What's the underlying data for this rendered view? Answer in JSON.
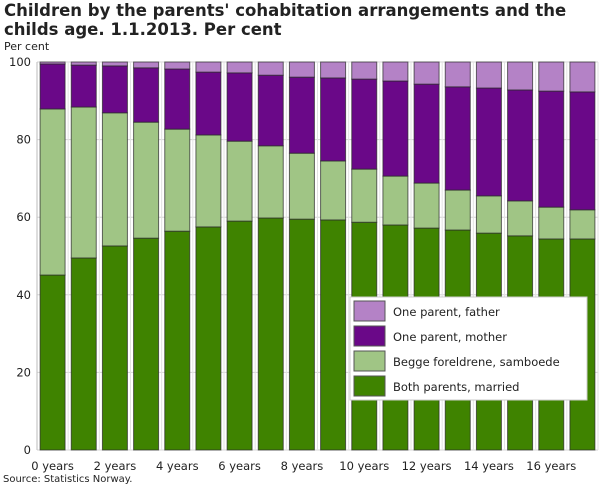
{
  "title": "Children by the parents' cohabitation arrangements and the childs age. 1.1.2013. Per cent",
  "ylabel": "Per cent",
  "source": "Source: Statistics Norway.",
  "chart_data": {
    "type": "bar",
    "stacked": true,
    "title": "Children by the parents' cohabitation arrangements and the childs age. 1.1.2013. Per cent",
    "ylabel": "Per cent",
    "xlabel": "",
    "ylim": [
      0,
      100
    ],
    "yticks": [
      0,
      20,
      40,
      60,
      80,
      100
    ],
    "grid": true,
    "legend_position": "bottom-right",
    "categories": [
      "0 years",
      "1 years",
      "2 years",
      "3 years",
      "4 years",
      "5 years",
      "6 years",
      "7 years",
      "8 years",
      "9 years",
      "10 years",
      "11 years",
      "12 years",
      "13 years",
      "14 years",
      "15 years",
      "16 years",
      "17 years"
    ],
    "xtick_labels": [
      "0 years",
      "2 years",
      "4 years",
      "6 years",
      "8 years",
      "10 years",
      "12 years",
      "14 years",
      "16 years"
    ],
    "series": [
      {
        "name": "Both parents, married",
        "color": "#3f8300",
        "values": [
          45.1,
          49.5,
          52.6,
          54.6,
          56.4,
          57.5,
          59.0,
          59.8,
          59.5,
          59.3,
          58.7,
          58.0,
          57.2,
          56.7,
          55.9,
          55.2,
          54.4,
          54.4
        ]
      },
      {
        "name": "Begge foreldrene, samboede",
        "color": "#a0c585",
        "values": [
          42.8,
          38.9,
          34.3,
          29.9,
          26.3,
          23.7,
          20.6,
          18.6,
          17.0,
          15.2,
          13.7,
          12.6,
          11.6,
          10.3,
          9.6,
          9.0,
          8.2,
          7.5
        ]
      },
      {
        "name": "One parent, mother",
        "color": "#6a0888",
        "values": [
          11.6,
          10.8,
          12.1,
          14.0,
          15.5,
          16.2,
          17.6,
          18.2,
          19.6,
          21.4,
          23.2,
          24.5,
          25.5,
          26.6,
          27.8,
          28.6,
          29.9,
          30.4
        ]
      },
      {
        "name": "One parent, father",
        "color": "#b482c6",
        "values": [
          0.5,
          0.8,
          1.0,
          1.5,
          1.8,
          2.6,
          2.8,
          3.4,
          3.9,
          4.1,
          4.4,
          4.9,
          5.7,
          6.4,
          6.7,
          7.2,
          7.5,
          7.7
        ]
      }
    ]
  }
}
